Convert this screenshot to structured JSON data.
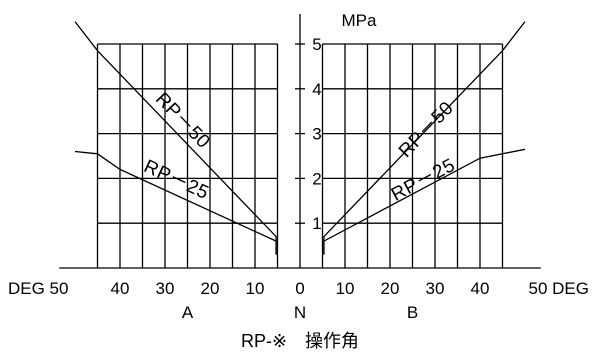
{
  "chart_data": {
    "type": "line",
    "title": "RP-※　操作角",
    "y_unit": "MPa",
    "xlim": [
      -50,
      50
    ],
    "ylim": [
      0,
      5
    ],
    "x_grid": [
      -45,
      -40,
      -35,
      -30,
      -25,
      -20,
      -15,
      -10,
      -5,
      5,
      10,
      15,
      20,
      25,
      30,
      35,
      40,
      45
    ],
    "y_ticks": [
      1,
      2,
      3,
      4,
      5
    ],
    "x_tick_labels": {
      "left_end": "DEG 50",
      "left": [
        "40",
        "30",
        "20",
        "10"
      ],
      "center": "0",
      "right": [
        "10",
        "20",
        "30",
        "40"
      ],
      "right_end": "50 DEG"
    },
    "x_tick_values_left": [
      -40,
      -30,
      -20,
      -10
    ],
    "x_tick_values_right": [
      10,
      20,
      30,
      40
    ],
    "side_labels": {
      "left": "A",
      "center": "N",
      "right": "B"
    },
    "grid": true,
    "series": [
      {
        "name": "RP－50",
        "side": "A",
        "x": [
          -50,
          -45,
          -5.3,
          -5.3
        ],
        "y": [
          5.5,
          4.85,
          0.7,
          0.3
        ]
      },
      {
        "name": "RP－25",
        "side": "A",
        "x": [
          -50,
          -45,
          -40,
          -5.3,
          -5.3
        ],
        "y": [
          2.6,
          2.55,
          2.2,
          0.6,
          0.3
        ]
      },
      {
        "name": "RP－50",
        "side": "B",
        "x": [
          5.3,
          5.3,
          45,
          50
        ],
        "y": [
          0.3,
          0.7,
          4.85,
          5.5
        ]
      },
      {
        "name": "RP－25",
        "side": "B",
        "x": [
          5.3,
          5.3,
          40,
          50
        ],
        "y": [
          0.3,
          0.6,
          2.45,
          2.65
        ]
      }
    ],
    "curve_labels": [
      {
        "text": "RP－50",
        "side": "A",
        "at_x": -27,
        "at_y": 3.2
      },
      {
        "text": "RP－25",
        "side": "A",
        "at_x": -28,
        "at_y": 1.85
      },
      {
        "text": "RP－50",
        "side": "B",
        "at_x": 29,
        "at_y": 3.0
      },
      {
        "text": "RP－25",
        "side": "B",
        "at_x": 28,
        "at_y": 1.85
      }
    ]
  }
}
